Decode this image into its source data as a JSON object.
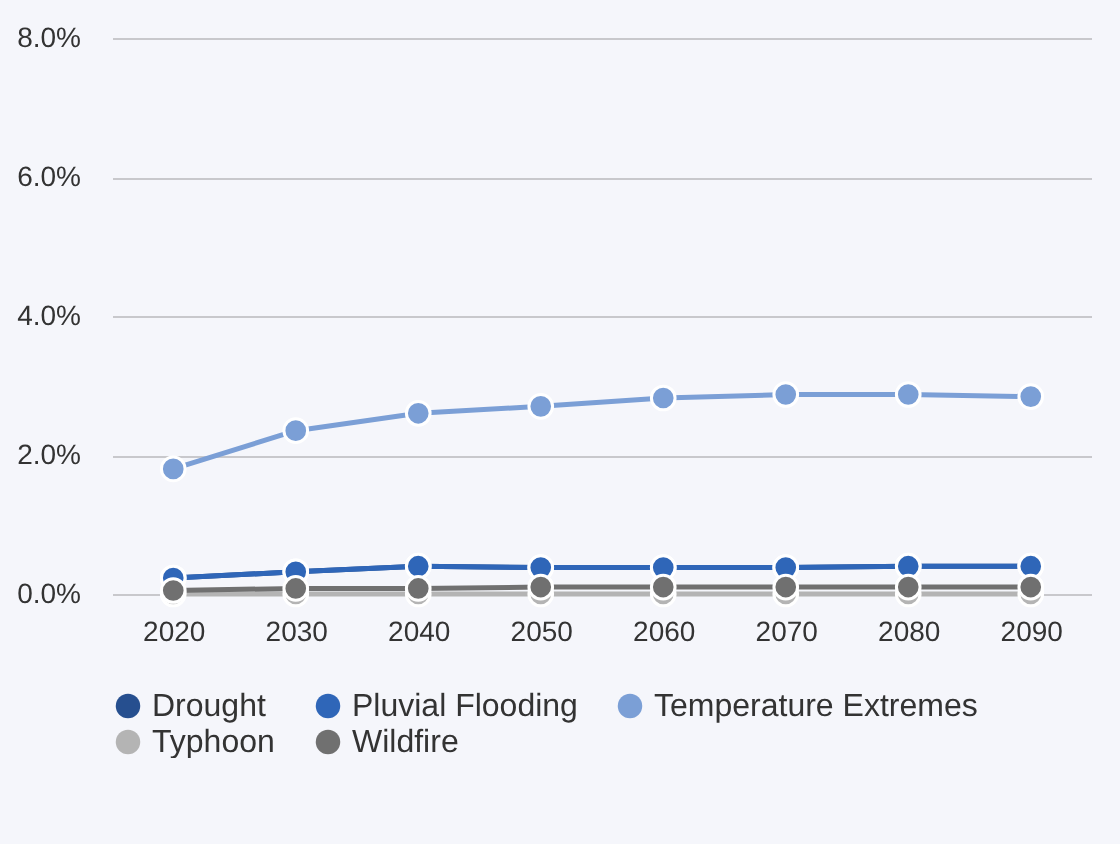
{
  "chart_data": {
    "type": "line",
    "categories": [
      "2020",
      "2030",
      "2040",
      "2050",
      "2060",
      "2070",
      "2080",
      "2090"
    ],
    "series": [
      {
        "name": "Drought",
        "color": "#264f8f",
        "values": [
          0.23,
          0.32,
          0.4,
          0.38,
          0.38,
          0.38,
          0.4,
          0.4
        ]
      },
      {
        "name": "Pluvial Flooding",
        "color": "#2f66b8",
        "values": [
          0.23,
          0.32,
          0.4,
          0.38,
          0.38,
          0.38,
          0.4,
          0.4
        ]
      },
      {
        "name": "Temperature Extremes",
        "color": "#7b9fd6",
        "values": [
          1.8,
          2.35,
          2.6,
          2.7,
          2.82,
          2.87,
          2.87,
          2.84
        ]
      },
      {
        "name": "Typhoon",
        "color": "#b4b4b4",
        "values": [
          0.0,
          0.0,
          0.0,
          0.0,
          0.0,
          0.0,
          0.0,
          0.0
        ]
      },
      {
        "name": "Wildfire",
        "color": "#707070",
        "values": [
          0.05,
          0.08,
          0.08,
          0.1,
          0.1,
          0.1,
          0.1,
          0.1
        ]
      }
    ],
    "ylim": [
      0,
      8
    ],
    "yticks": [
      {
        "value": 0,
        "label": "0.0%"
      },
      {
        "value": 2,
        "label": "2.0%"
      },
      {
        "value": 4,
        "label": "4.0%"
      },
      {
        "value": 6,
        "label": "6.0%"
      },
      {
        "value": 8,
        "label": "8.0%"
      }
    ],
    "grid": "y",
    "legend": "bottom",
    "marker": "circle",
    "line_style": "solid"
  }
}
